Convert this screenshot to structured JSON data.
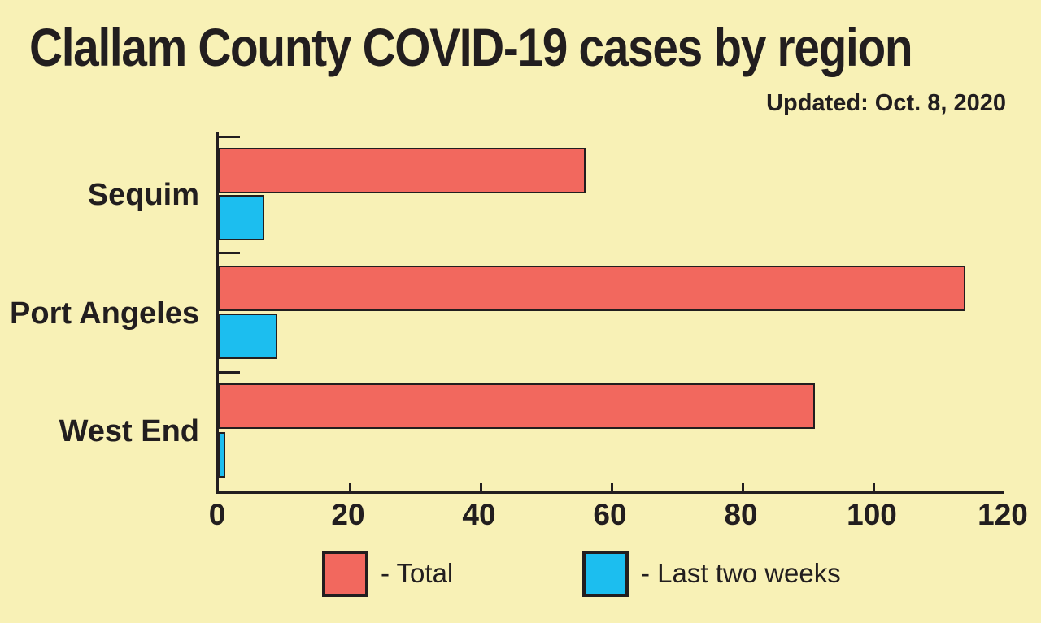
{
  "title": "Clallam County COVID-19 cases by region",
  "updated": "Updated: Oct. 8, 2020",
  "colors": {
    "background": "#f8f1b6",
    "ink": "#221e1f",
    "total_bar": "#f2685e",
    "recent_bar": "#1cbeef"
  },
  "chart_data": {
    "type": "bar",
    "orientation": "horizontal",
    "title": "Clallam County COVID-19 cases by region",
    "subtitle": "Updated: Oct. 8, 2020",
    "categories": [
      "Sequim",
      "Port Angeles",
      "West End"
    ],
    "series": [
      {
        "name": "Total",
        "color": "#f2685e",
        "values": [
          56,
          114,
          91
        ]
      },
      {
        "name": "Last two weeks",
        "color": "#1cbeef",
        "values": [
          7,
          9,
          1
        ]
      }
    ],
    "xlim": [
      0,
      120
    ],
    "x_ticks": [
      0,
      20,
      40,
      60,
      80,
      100,
      120
    ],
    "grid": false,
    "legend_position": "bottom"
  },
  "legend": {
    "items": [
      {
        "series": "Total",
        "label": "- Total"
      },
      {
        "series": "Last two weeks",
        "label": "- Last two weeks"
      }
    ]
  }
}
